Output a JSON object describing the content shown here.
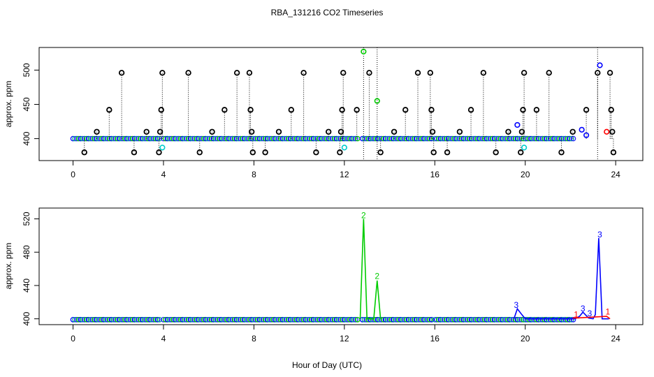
{
  "chart_data": [
    {
      "type": "scatter",
      "title": "RBA_131216  CO2 Timeseries",
      "xlabel": "",
      "ylabel": "approx. ppm",
      "xlim": [
        -1.5,
        25.2
      ],
      "ylim": [
        368,
        533
      ],
      "xticks": [
        0,
        4,
        8,
        12,
        16,
        20,
        24
      ],
      "yticks": [
        400,
        450,
        500
      ],
      "grid": false,
      "legend": "none",
      "colors": {
        "black": "#000000",
        "blue": "#0000ff",
        "green": "#00cc00",
        "cyan": "#00cccc",
        "red": "#ff0000",
        "gray": "#888888"
      },
      "baseline_segments": [
        [
          0,
          3.9
        ],
        [
          4.0,
          12.6
        ],
        [
          12.8,
          15.9
        ],
        [
          16.0,
          20.0
        ],
        [
          20.0,
          22.2
        ]
      ],
      "baseline_value": 400,
      "black_spikes": [
        {
          "x": 0.5,
          "y": 380
        },
        {
          "x": 1.05,
          "y": 410
        },
        {
          "x": 1.6,
          "y": 442
        },
        {
          "x": 2.15,
          "y": 496
        },
        {
          "x": 2.7,
          "y": 380
        },
        {
          "x": 3.25,
          "y": 410
        },
        {
          "x": 3.8,
          "y": 380
        },
        {
          "x": 3.85,
          "y": 410
        },
        {
          "x": 3.9,
          "y": 442
        },
        {
          "x": 3.95,
          "y": 496
        },
        {
          "x": 5.1,
          "y": 496
        },
        {
          "x": 5.6,
          "y": 380
        },
        {
          "x": 6.15,
          "y": 410
        },
        {
          "x": 6.7,
          "y": 442
        },
        {
          "x": 7.25,
          "y": 496
        },
        {
          "x": 7.8,
          "y": 496
        },
        {
          "x": 7.85,
          "y": 442
        },
        {
          "x": 7.9,
          "y": 410
        },
        {
          "x": 7.95,
          "y": 380
        },
        {
          "x": 8.5,
          "y": 380
        },
        {
          "x": 9.1,
          "y": 410
        },
        {
          "x": 9.65,
          "y": 442
        },
        {
          "x": 10.2,
          "y": 496
        },
        {
          "x": 10.75,
          "y": 380
        },
        {
          "x": 11.3,
          "y": 410
        },
        {
          "x": 11.8,
          "y": 380
        },
        {
          "x": 11.85,
          "y": 410
        },
        {
          "x": 11.9,
          "y": 442
        },
        {
          "x": 11.95,
          "y": 496
        },
        {
          "x": 12.55,
          "y": 442
        },
        {
          "x": 13.1,
          "y": 496
        },
        {
          "x": 13.6,
          "y": 380
        },
        {
          "x": 14.2,
          "y": 410
        },
        {
          "x": 14.7,
          "y": 442
        },
        {
          "x": 15.25,
          "y": 496
        },
        {
          "x": 15.8,
          "y": 496
        },
        {
          "x": 15.85,
          "y": 442
        },
        {
          "x": 15.9,
          "y": 410
        },
        {
          "x": 15.95,
          "y": 380
        },
        {
          "x": 16.55,
          "y": 380
        },
        {
          "x": 17.1,
          "y": 410
        },
        {
          "x": 17.6,
          "y": 442
        },
        {
          "x": 18.15,
          "y": 496
        },
        {
          "x": 18.7,
          "y": 380
        },
        {
          "x": 19.25,
          "y": 410
        },
        {
          "x": 19.8,
          "y": 380
        },
        {
          "x": 19.85,
          "y": 410
        },
        {
          "x": 19.9,
          "y": 442
        },
        {
          "x": 19.95,
          "y": 496
        },
        {
          "x": 20.5,
          "y": 442
        },
        {
          "x": 21.05,
          "y": 496
        },
        {
          "x": 21.6,
          "y": 380
        },
        {
          "x": 22.1,
          "y": 410
        },
        {
          "x": 22.7,
          "y": 442
        },
        {
          "x": 23.2,
          "y": 496
        },
        {
          "x": 23.75,
          "y": 496
        },
        {
          "x": 23.8,
          "y": 442
        },
        {
          "x": 23.85,
          "y": 410
        },
        {
          "x": 23.9,
          "y": 380
        }
      ],
      "colored_points": [
        {
          "x": 3.95,
          "y": 387,
          "color": "cyan"
        },
        {
          "x": 12.0,
          "y": 387,
          "color": "cyan"
        },
        {
          "x": 19.95,
          "y": 387,
          "color": "cyan"
        },
        {
          "x": 12.85,
          "y": 527,
          "color": "green"
        },
        {
          "x": 13.45,
          "y": 455,
          "color": "green"
        },
        {
          "x": 19.65,
          "y": 420,
          "color": "blue"
        },
        {
          "x": 23.3,
          "y": 507,
          "color": "blue"
        },
        {
          "x": 22.5,
          "y": 413,
          "color": "blue"
        },
        {
          "x": 22.7,
          "y": 405,
          "color": "blue"
        },
        {
          "x": 23.6,
          "y": 410,
          "color": "red"
        }
      ],
      "tall_lines_x": [
        12.85,
        13.45,
        23.2
      ]
    },
    {
      "type": "line",
      "title": "",
      "xlabel": "Hour of Day (UTC)",
      "ylabel": "approx. ppm",
      "xlim": [
        -1.5,
        25.2
      ],
      "ylim": [
        393,
        533
      ],
      "xticks": [
        0,
        4,
        8,
        12,
        16,
        20,
        24
      ],
      "yticks": [
        400,
        440,
        480,
        520
      ],
      "grid": false,
      "legend": "none",
      "baseline_segments": [
        [
          0,
          3.9
        ],
        [
          4.0,
          12.6
        ],
        [
          12.8,
          15.9
        ],
        [
          16.0,
          20.0
        ],
        [
          20.0,
          22.2
        ]
      ],
      "baseline_value": 399,
      "series": [
        {
          "color": "green",
          "points": [
            [
              12.7,
              400
            ],
            [
              12.85,
              520
            ],
            [
              13.0,
              400
            ],
            [
              13.3,
              400
            ],
            [
              13.45,
              446
            ],
            [
              13.6,
              400
            ]
          ]
        },
        {
          "color": "blue",
          "points": [
            [
              19.5,
              400
            ],
            [
              19.65,
              412
            ],
            [
              19.85,
              405
            ],
            [
              20.0,
              400
            ],
            [
              22.2,
              400
            ],
            [
              22.4,
              403
            ],
            [
              22.55,
              408
            ],
            [
              22.8,
              401
            ],
            [
              23.0,
              400
            ],
            [
              23.1,
              405
            ],
            [
              23.25,
              497
            ],
            [
              23.4,
              400
            ],
            [
              23.7,
              400
            ]
          ]
        },
        {
          "color": "red",
          "points": [
            [
              22.1,
              401
            ],
            [
              22.3,
              401
            ],
            [
              23.6,
              403
            ],
            [
              23.75,
              400
            ]
          ]
        }
      ],
      "labels": [
        {
          "x": 12.85,
          "y": 521,
          "text": "2",
          "color": "green"
        },
        {
          "x": 13.45,
          "y": 448,
          "text": "2",
          "color": "green"
        },
        {
          "x": 19.6,
          "y": 413,
          "text": "3",
          "color": "blue"
        },
        {
          "x": 22.55,
          "y": 409,
          "text": "3",
          "color": "blue"
        },
        {
          "x": 22.85,
          "y": 403,
          "text": "3",
          "color": "blue"
        },
        {
          "x": 23.3,
          "y": 498,
          "text": "3",
          "color": "blue"
        },
        {
          "x": 22.25,
          "y": 402,
          "text": "1",
          "color": "red"
        },
        {
          "x": 23.65,
          "y": 405,
          "text": "1",
          "color": "red"
        }
      ]
    }
  ]
}
